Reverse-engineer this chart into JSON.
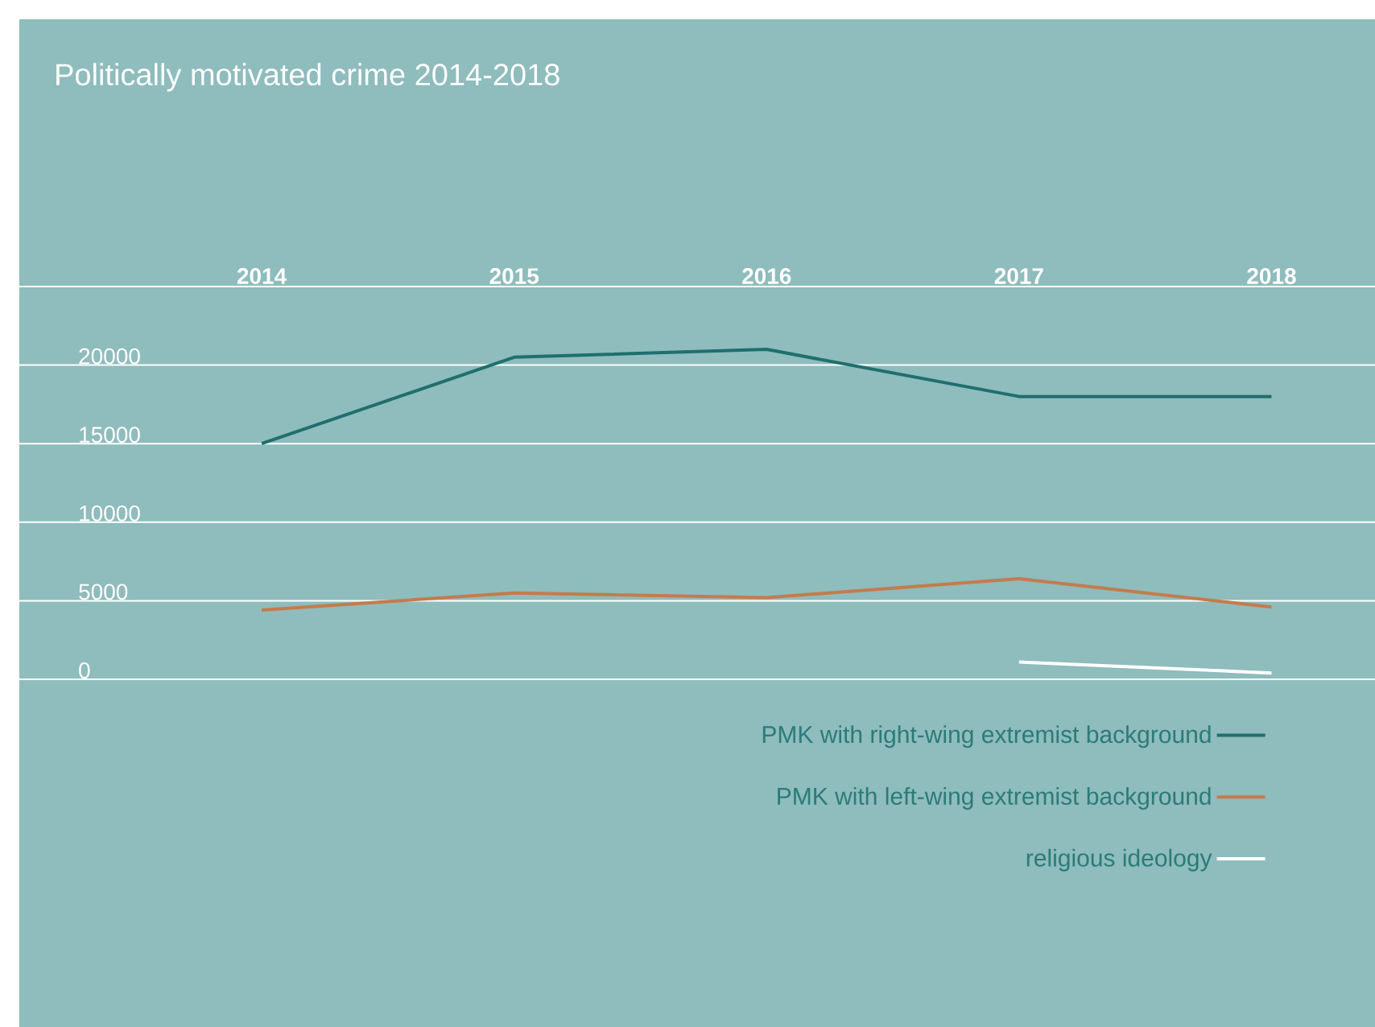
{
  "chart_data": {
    "type": "line",
    "title": "Politically motivated crime 2014-2018",
    "categories": [
      "2014",
      "2015",
      "2016",
      "2017",
      "2018"
    ],
    "series": [
      {
        "name": "PMK with right-wing extremist background",
        "color": "#1f6f6d",
        "values": [
          15000,
          20500,
          21000,
          18000,
          18000
        ]
      },
      {
        "name": "PMK with left-wing extremist background",
        "color": "#c57b4c",
        "values": [
          4400,
          5500,
          5200,
          6400,
          4600
        ]
      },
      {
        "name": "religious ideology",
        "color": "#ffffff",
        "values": [
          null,
          null,
          null,
          1100,
          400
        ]
      }
    ],
    "ylim": [
      0,
      25000
    ],
    "yticks": [
      0,
      5000,
      10000,
      15000,
      20000,
      {
        "value": 25000,
        "label": null
      }
    ],
    "grid": "y",
    "legend": "bottom right",
    "marker": "none"
  }
}
